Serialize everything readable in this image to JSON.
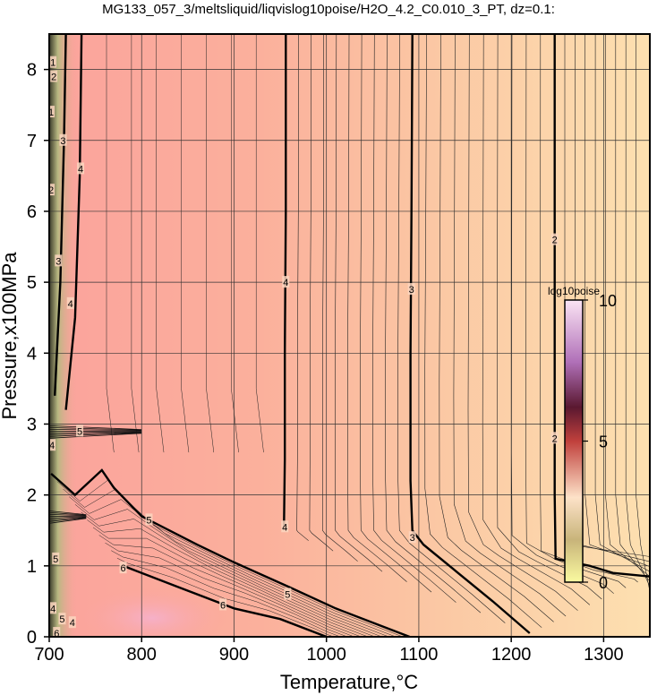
{
  "chart_data": {
    "type": "heatmap",
    "title": "MG133_057_3/meltsliquid/liqvislog10poise/H2O_4.2_C0.010_3_PT, dz=0.1:",
    "xlabel": "Temperature,°C",
    "ylabel": "Pressure,x100MPa",
    "xlim": [
      700,
      1350
    ],
    "ylim": [
      0,
      8.5
    ],
    "x_ticks": [
      700,
      800,
      900,
      1000,
      1100,
      1200,
      1300
    ],
    "y_ticks": [
      0,
      1,
      2,
      3,
      4,
      5,
      6,
      7,
      8
    ],
    "grid": true,
    "contour_interval": 0.1,
    "colorbar": {
      "title": "log10poise",
      "ticks": [
        0,
        5,
        10
      ],
      "range": [
        0,
        10
      ],
      "placement": "right-inside"
    },
    "major_contours": [
      {
        "level": 4,
        "label": "4",
        "points": [
          [
            956,
            8.5
          ],
          [
            956,
            6.0
          ],
          [
            955,
            4.0
          ],
          [
            955,
            2.5
          ],
          [
            954,
            1.5
          ]
        ]
      },
      {
        "level": 3,
        "label": "3",
        "points": [
          [
            1093,
            8.5
          ],
          [
            1092,
            6.0
          ],
          [
            1091,
            4.0
          ],
          [
            1091,
            2.2
          ],
          [
            1093,
            1.5
          ],
          [
            1105,
            1.3
          ],
          [
            1180,
            0.5
          ],
          [
            1220,
            0.05
          ]
        ]
      },
      {
        "level": 2,
        "label": "2",
        "points": [
          [
            1247,
            8.5
          ],
          [
            1247,
            5.5
          ],
          [
            1247,
            2.0
          ],
          [
            1248,
            1.1
          ],
          [
            1285,
            1.0
          ],
          [
            1310,
            0.9
          ],
          [
            1350,
            0.85
          ]
        ]
      },
      {
        "level": 4,
        "label": "4",
        "points": [
          [
            735,
            8.5
          ],
          [
            733,
            6.5
          ],
          [
            728,
            4.5
          ],
          [
            718,
            3.2
          ]
        ]
      },
      {
        "level": 3,
        "label": "3",
        "points": [
          [
            718,
            8.5
          ],
          [
            716,
            7.0
          ],
          [
            712,
            5.0
          ],
          [
            706,
            3.4
          ]
        ]
      },
      {
        "level": 5,
        "label": "5",
        "points": [
          [
            702,
            2.3
          ],
          [
            728,
            2.0
          ],
          [
            757,
            2.35
          ],
          [
            770,
            2.1
          ],
          [
            800,
            1.7
          ],
          [
            860,
            1.3
          ],
          [
            900,
            1.05
          ],
          [
            960,
            0.7
          ],
          [
            1010,
            0.4
          ],
          [
            1060,
            0.15
          ],
          [
            1090,
            0.0
          ]
        ]
      },
      {
        "level": 6,
        "label": "6",
        "points": [
          [
            780,
            1.0
          ],
          [
            790,
            0.95
          ],
          [
            840,
            0.7
          ],
          [
            900,
            0.4
          ],
          [
            950,
            0.25
          ],
          [
            1000,
            0.0
          ]
        ]
      }
    ],
    "band_features": [
      {
        "pressure": 2.9,
        "x_from": 700,
        "x_to": 800,
        "note": "dense contour cluster"
      },
      {
        "pressure": 1.7,
        "x_from": 700,
        "x_to": 740,
        "note": "dense contour cluster"
      }
    ],
    "annotations": [
      {
        "text": "4",
        "x": 956,
        "y": 5.0
      },
      {
        "text": "3",
        "x": 1092,
        "y": 4.9
      },
      {
        "text": "2",
        "x": 1247,
        "y": 5.6
      },
      {
        "text": "2",
        "x": 1247,
        "y": 2.8
      },
      {
        "text": "4",
        "x": 955,
        "y": 1.55
      },
      {
        "text": "3",
        "x": 1093,
        "y": 1.4
      },
      {
        "text": "5",
        "x": 808,
        "y": 1.65
      },
      {
        "text": "6",
        "x": 780,
        "y": 0.97
      },
      {
        "text": "6",
        "x": 888,
        "y": 0.45
      },
      {
        "text": "5",
        "x": 958,
        "y": 0.6
      },
      {
        "text": "4",
        "x": 734,
        "y": 6.6
      },
      {
        "text": "4",
        "x": 723,
        "y": 4.7
      },
      {
        "text": "3",
        "x": 715,
        "y": 7.0
      },
      {
        "text": "3",
        "x": 710,
        "y": 5.3
      },
      {
        "text": "2",
        "x": 705,
        "y": 7.9
      },
      {
        "text": "2",
        "x": 702,
        "y": 6.3
      },
      {
        "text": "1",
        "x": 704,
        "y": 8.1
      },
      {
        "text": "1",
        "x": 702,
        "y": 7.4
      },
      {
        "text": "5",
        "x": 733,
        "y": 2.9
      },
      {
        "text": "4",
        "x": 703,
        "y": 2.7
      },
      {
        "text": "5",
        "x": 707,
        "y": 1.1
      },
      {
        "text": "4",
        "x": 704,
        "y": 0.4
      },
      {
        "text": "5",
        "x": 714,
        "y": 0.25
      },
      {
        "text": "4",
        "x": 725,
        "y": 0.2
      },
      {
        "text": "6",
        "x": 708,
        "y": 0.05
      }
    ]
  }
}
